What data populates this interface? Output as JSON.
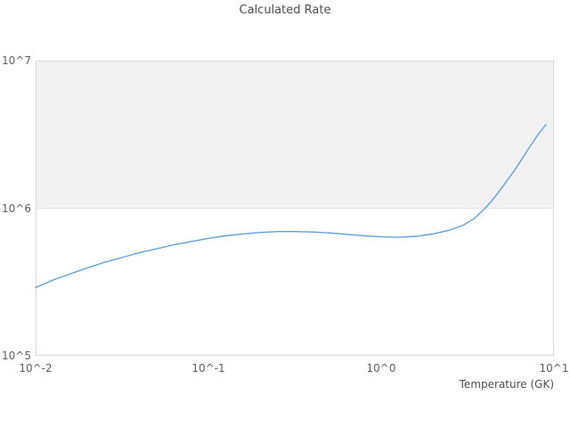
{
  "title": "Calculated Rate",
  "chart_data": {
    "type": "line",
    "title": "Calculated Rate",
    "xlabel": "Temperature (GK)",
    "ylabel": "",
    "xscale": "log",
    "yscale": "log",
    "xlim": [
      0.01,
      10
    ],
    "ylim": [
      100000,
      10000000
    ],
    "x_tick_labels": [
      "10^-2",
      "10^-1",
      "10^0",
      "10^1"
    ],
    "x_tick_values": [
      0.01,
      0.1,
      1,
      10
    ],
    "y_tick_labels": [
      "10^5",
      "10^6",
      "10^7"
    ],
    "y_tick_values": [
      100000,
      1000000,
      10000000
    ],
    "legend": "none",
    "grid": "horizontal gridline at 10^6 only",
    "plot_band": {
      "from": 1000000,
      "to": 10000000,
      "color": "#f2f2f2"
    },
    "series": [
      {
        "name": "Calculated Rate",
        "color": "#64a1dc",
        "x": [
          0.01,
          0.0125,
          0.016,
          0.02,
          0.025,
          0.032,
          0.04,
          0.05,
          0.063,
          0.08,
          0.1,
          0.125,
          0.16,
          0.2,
          0.25,
          0.32,
          0.4,
          0.5,
          0.63,
          0.8,
          1.0,
          1.25,
          1.6,
          2.0,
          2.5,
          3.0,
          3.5,
          4.0,
          4.5,
          5.0,
          6.0,
          7.0,
          8.0,
          9.0
        ],
        "y": [
          290000,
          325000,
          360000,
          395000,
          430000,
          465000,
          500000,
          530000,
          565000,
          595000,
          625000,
          650000,
          670000,
          685000,
          695000,
          695000,
          690000,
          680000,
          665000,
          650000,
          640000,
          635000,
          645000,
          670000,
          710000,
          770000,
          860000,
          1000000,
          1170000,
          1380000,
          1850000,
          2450000,
          3100000,
          3700000
        ]
      }
    ]
  },
  "colors": {
    "line": "#64a1dc",
    "band": "#f2f2f2",
    "border": "#d8d8d8",
    "gridline": "#e3e3e3",
    "text": "#555555",
    "background": "#ffffff"
  }
}
